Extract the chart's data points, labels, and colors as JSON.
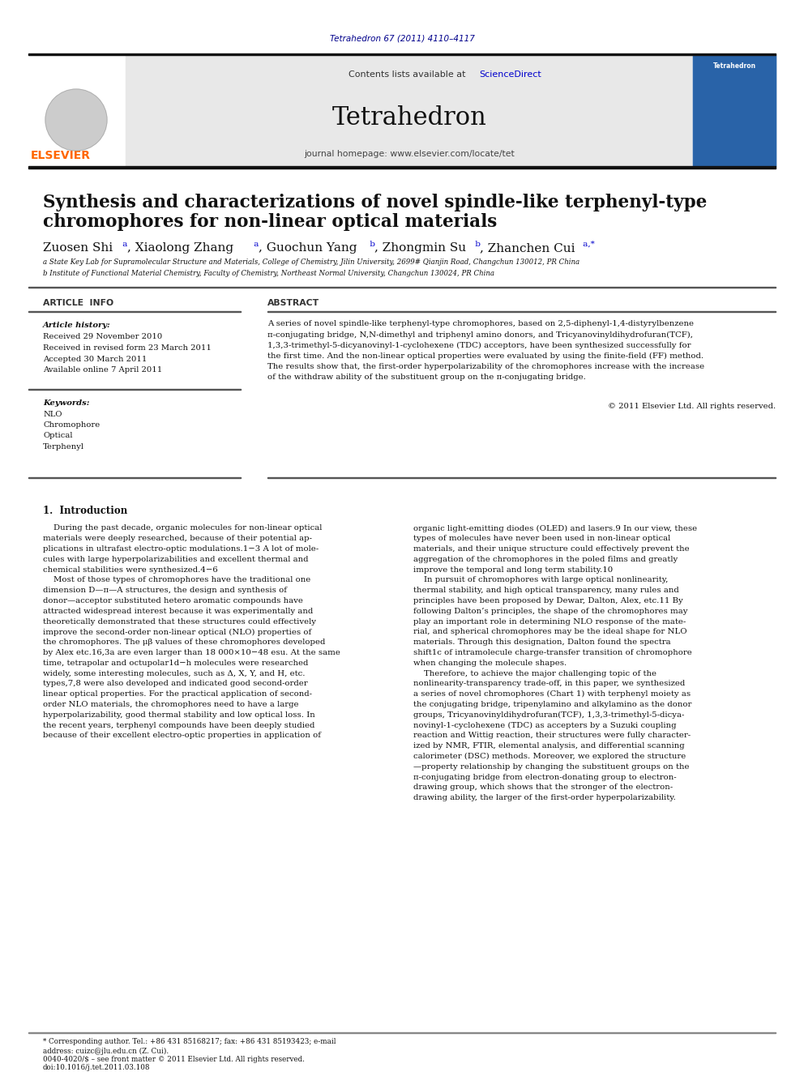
{
  "bg_color": "#ffffff",
  "journal_ref": "Tetrahedron 67 (2011) 4110–4117",
  "journal_ref_color": "#00008B",
  "header_bg": "#e8e8e8",
  "contents_text": "Contents lists available at ",
  "sciencedirect_text": "ScienceDirect",
  "sciencedirect_color": "#0000CD",
  "journal_name": "Tetrahedron",
  "journal_homepage": "journal homepage: www.elsevier.com/locate/tet",
  "elsevier_color": "#FF6600",
  "paper_title_line1": "Synthesis and characterizations of novel spindle-like terphenyl-type",
  "paper_title_line2": "chromophores for non-linear optical materials",
  "affil_a": "a State Key Lab for Supramolecular Structure and Materials, College of Chemistry, Jilin University, 2699# Qianjin Road, Changchun 130012, PR China",
  "affil_b": "b Institute of Functional Material Chemistry, Faculty of Chemistry, Northeast Normal University, Changchun 130024, PR China",
  "article_info_title": "ARTICLE  INFO",
  "history_title": "Article history:",
  "history_lines": [
    "Received 29 November 2010",
    "Received in revised form 23 March 2011",
    "Accepted 30 March 2011",
    "Available online 7 April 2011"
  ],
  "keywords_title": "Keywords:",
  "keywords": [
    "NLO",
    "Chromophore",
    "Optical",
    "Terphenyl"
  ],
  "abstract_title": "ABSTRACT",
  "abstract_lines": [
    "A series of novel spindle-like terphenyl-type chromophores, based on 2,5-diphenyl-1,4-distyrylbenzene",
    "π-conjugating bridge, N,N-dimethyl and triphenyl amino donors, and Tricyanovinyldihydrofuran(TCF),",
    "1,3,3-trimethyl-5-dicyanovinyl-1-cyclohexene (TDC) acceptors, have been synthesized successfully for",
    "the first time. And the non-linear optical properties were evaluated by using the finite-field (FF) method.",
    "The results show that, the first-order hyperpolarizability of the chromophores increase with the increase",
    "of the withdraw ability of the substituent group on the π-conjugating bridge."
  ],
  "copyright_line": "© 2011 Elsevier Ltd. All rights reserved.",
  "intro_title": "1.  Introduction",
  "col1_lines": [
    "    During the past decade, organic molecules for non-linear optical",
    "materials were deeply researched, because of their potential ap-",
    "plications in ultrafast electro-optic modulations.1−3 A lot of mole-",
    "cules with large hyperpolarizabilities and excellent thermal and",
    "chemical stabilities were synthesized.4−6",
    "    Most of those types of chromophores have the traditional one",
    "dimension D—π—A structures, the design and synthesis of",
    "donor—acceptor substituted hetero aromatic compounds have",
    "attracted widespread interest because it was experimentally and",
    "theoretically demonstrated that these structures could effectively",
    "improve the second-order non-linear optical (NLO) properties of",
    "the chromophores. The μβ values of these chromophores developed",
    "by Alex etc.16,3a are even larger than 18 000×10−48 esu. At the same",
    "time, tetrapolar and octupolar1d−h molecules were researched",
    "widely, some interesting molecules, such as Δ, X, Y, and H, etc.",
    "types,7,8 were also developed and indicated good second-order",
    "linear optical properties. For the practical application of second-",
    "order NLO materials, the chromophores need to have a large",
    "hyperpolarizability, good thermal stability and low optical loss. In",
    "the recent years, terphenyl compounds have been deeply studied",
    "because of their excellent electro-optic properties in application of"
  ],
  "col2_lines": [
    "organic light-emitting diodes (OLED) and lasers.9 In our view, these",
    "types of molecules have never been used in non-linear optical",
    "materials, and their unique structure could effectively prevent the",
    "aggregation of the chromophores in the poled films and greatly",
    "improve the temporal and long term stability.10",
    "    In pursuit of chromophores with large optical nonlinearity,",
    "thermal stability, and high optical transparency, many rules and",
    "principles have been proposed by Dewar, Dalton, Alex, etc.11 By",
    "following Dalton’s principles, the shape of the chromophores may",
    "play an important role in determining NLO response of the mate-",
    "rial, and spherical chromophores may be the ideal shape for NLO",
    "materials. Through this designation, Dalton found the spectra",
    "shift1c of intramolecule charge-transfer transition of chromophore",
    "when changing the molecule shapes.",
    "    Therefore, to achieve the major challenging topic of the",
    "nonlinearity-transparency trade-off, in this paper, we synthesized",
    "a series of novel chromophores (Chart 1) with terphenyl moiety as",
    "the conjugating bridge, tripenylamino and alkylamino as the donor",
    "groups, Tricyanovinyldihydrofuran(TCF), 1,3,3-trimethyl-5-dicya-",
    "novinyl-1-cyclohexene (TDC) as accepters by a Suzuki coupling",
    "reaction and Wittig reaction, their structures were fully character-",
    "ized by NMR, FTIR, elemental analysis, and differential scanning",
    "calorimeter (DSC) methods. Moreover, we explored the structure",
    "—property relationship by changing the substituent groups on the",
    "π-conjugating bridge from electron-donating group to electron-",
    "drawing group, which shows that the stronger of the electron-",
    "drawing ability, the larger of the first-order hyperpolarizability."
  ],
  "footer_line1": "* Corresponding author. Tel.: +86 431 85168217; fax: +86 431 85193423; e-mail",
  "footer_line2": "address: cuizc@jlu.edu.cn (Z. Cui).",
  "footer_line3": "0040-4020/$ – see front matter © 2011 Elsevier Ltd. All rights reserved.",
  "footer_line4": "doi:10.1016/j.tet.2011.03.108"
}
